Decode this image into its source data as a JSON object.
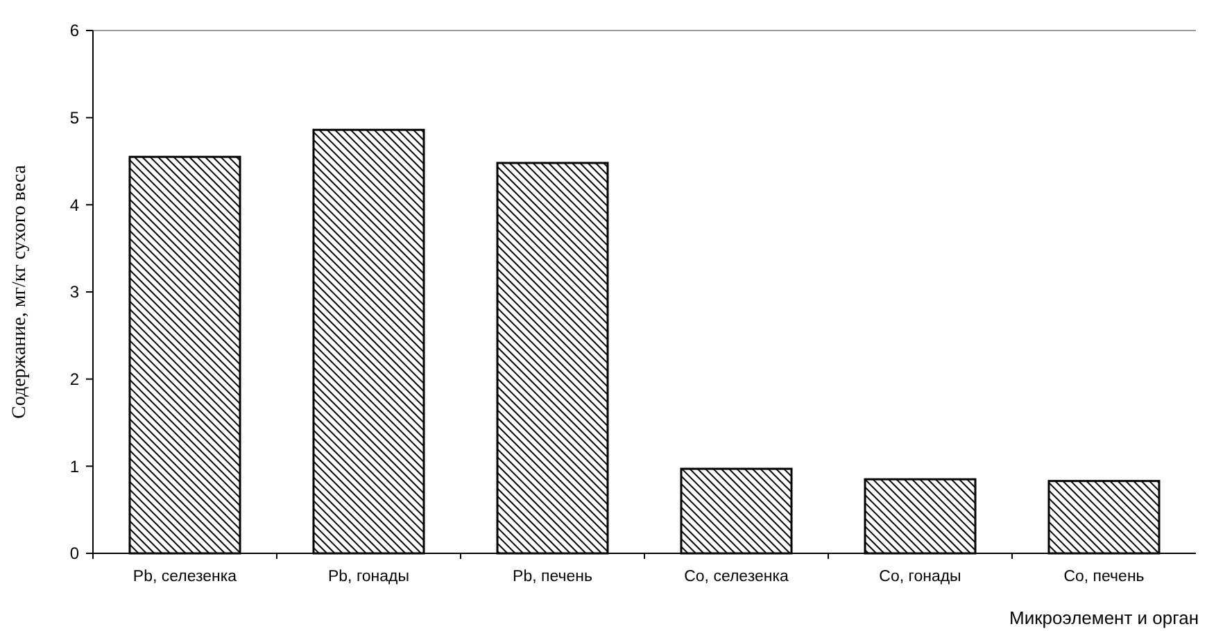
{
  "chart_data": {
    "type": "bar",
    "xlabel": "Микроэлемент и орган",
    "ylabel": "Содержание, мг/кг сухого веса",
    "categories": [
      "Pb, селезенка",
      "Pb, гонады",
      "Pb, печень",
      "Co, селезенка",
      "Co, гонады",
      "Co, печень"
    ],
    "values": [
      4.55,
      4.86,
      4.48,
      0.97,
      0.85,
      0.83
    ],
    "color": "#000000",
    "ylim": [
      0,
      6
    ],
    "yticks": [
      0,
      1,
      2,
      3,
      4,
      5,
      6
    ],
    "grid": false
  }
}
